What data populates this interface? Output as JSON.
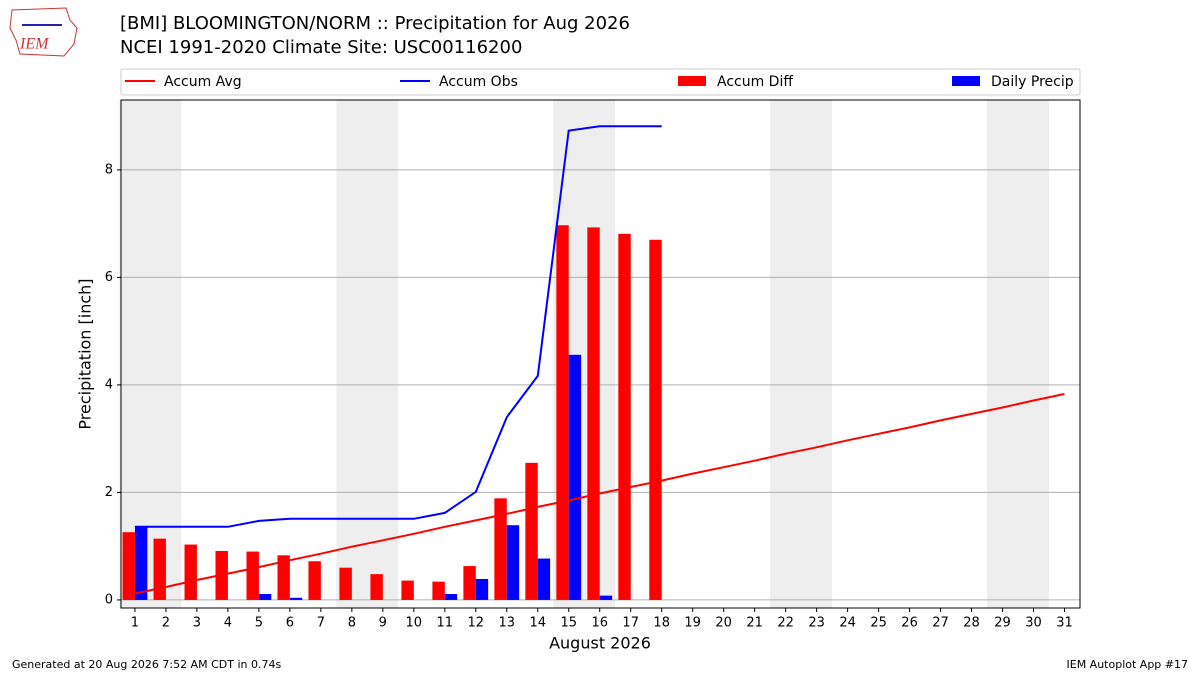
{
  "logo_text": "IEM",
  "footer_left": "Generated at 20 Aug 2026 7:52 AM CDT in 0.74s",
  "footer_right": "IEM Autoplot App #17",
  "chart_data": {
    "type": "bar_line",
    "title": "[BMI] BLOOMINGTON/NORM :: Precipitation for Aug 2026",
    "subtitle": "NCEI 1991-2020 Climate Site: USC00116200",
    "xlabel": "August 2026",
    "ylabel": "Precipitation [inch]",
    "x": [
      1,
      2,
      3,
      4,
      5,
      6,
      7,
      8,
      9,
      10,
      11,
      12,
      13,
      14,
      15,
      16,
      17,
      18,
      19,
      20,
      21,
      22,
      23,
      24,
      25,
      26,
      27,
      28,
      29,
      30,
      31
    ],
    "xlim": [
      0.55,
      31.5
    ],
    "xticks": [
      1,
      2,
      3,
      4,
      5,
      6,
      7,
      8,
      9,
      10,
      11,
      12,
      13,
      14,
      15,
      16,
      17,
      18,
      19,
      20,
      21,
      22,
      23,
      24,
      25,
      26,
      27,
      28,
      29,
      30,
      31
    ],
    "ylim": [
      -0.15,
      9.3
    ],
    "yticks": [
      0,
      2,
      4,
      6,
      8
    ],
    "grid": true,
    "series": [
      {
        "name": "Accum Avg",
        "kind": "line",
        "color": "#ff0000",
        "values": [
          0.12,
          0.24,
          0.37,
          0.49,
          0.61,
          0.74,
          0.86,
          0.99,
          1.11,
          1.23,
          1.36,
          1.48,
          1.6,
          1.73,
          1.85,
          1.98,
          2.1,
          2.22,
          2.35,
          2.47,
          2.59,
          2.72,
          2.84,
          2.97,
          3.09,
          3.21,
          3.34,
          3.46,
          3.58,
          3.71,
          3.83
        ]
      },
      {
        "name": "Accum Obs",
        "kind": "line",
        "color": "#0000ff",
        "values": [
          1.36,
          1.36,
          1.36,
          1.36,
          1.47,
          1.51,
          1.51,
          1.51,
          1.51,
          1.51,
          1.62,
          2.01,
          3.4,
          4.17,
          8.73,
          8.81,
          8.81,
          8.81,
          null,
          null,
          null,
          null,
          null,
          null,
          null,
          null,
          null,
          null,
          null,
          null,
          null
        ]
      },
      {
        "name": "Accum Diff",
        "kind": "bar",
        "offset": -1,
        "color": "#ff0000",
        "values": [
          1.26,
          1.14,
          1.03,
          0.91,
          0.9,
          0.83,
          0.72,
          0.6,
          0.48,
          0.36,
          0.34,
          0.63,
          1.89,
          2.55,
          6.97,
          6.93,
          6.81,
          6.7,
          null,
          null,
          null,
          null,
          null,
          null,
          null,
          null,
          null,
          null,
          null,
          null,
          null
        ]
      },
      {
        "name": "Daily Precip",
        "kind": "bar",
        "offset": 0,
        "color": "#0000ff",
        "values": [
          1.36,
          0,
          0,
          0,
          0.11,
          0.04,
          0,
          0,
          0,
          0,
          0.11,
          0.39,
          1.39,
          0.77,
          4.56,
          0.08,
          0,
          0,
          null,
          null,
          null,
          null,
          null,
          null,
          null,
          null,
          null,
          null,
          null,
          null,
          null
        ]
      }
    ]
  }
}
